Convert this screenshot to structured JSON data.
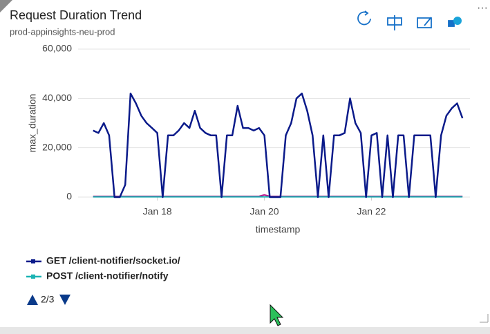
{
  "chart_data": {
    "type": "line",
    "title": "Request Duration Trend",
    "subtitle": "prod-appinsights-neu-prod",
    "x_label": "timestamp",
    "y_label": "max_duration",
    "xlim": [
      16.52,
      23.84
    ],
    "xticks": [
      {
        "value": 18,
        "label": "Jan 18"
      },
      {
        "value": 20,
        "label": "Jan 20"
      },
      {
        "value": 22,
        "label": "Jan 22"
      }
    ],
    "ylim": [
      0,
      60000
    ],
    "yticks": [
      0,
      {
        "value": 20000,
        "label": "20,000"
      },
      {
        "value": 40000,
        "label": "40,000"
      },
      {
        "value": 60000,
        "label": "60,000"
      }
    ],
    "grid": true,
    "legend_page": "2/3",
    "x": [
      16.8,
      16.9,
      17.0,
      17.1,
      17.2,
      17.3,
      17.4,
      17.5,
      17.6,
      17.7,
      17.8,
      17.9,
      18.0,
      18.1,
      18.2,
      18.3,
      18.4,
      18.5,
      18.6,
      18.7,
      18.8,
      18.9,
      19.0,
      19.1,
      19.2,
      19.3,
      19.4,
      19.5,
      19.6,
      19.7,
      19.8,
      19.9,
      20.0,
      20.1,
      20.2,
      20.3,
      20.4,
      20.5,
      20.6,
      20.7,
      20.8,
      20.9,
      21.0,
      21.1,
      21.2,
      21.3,
      21.4,
      21.5,
      21.6,
      21.7,
      21.8,
      21.9,
      22.0,
      22.1,
      22.2,
      22.3,
      22.4,
      22.5,
      22.6,
      22.7,
      22.8,
      22.9,
      23.0,
      23.1,
      23.2,
      23.3,
      23.4,
      23.5,
      23.6,
      23.7
    ],
    "series": [
      {
        "name": "GET /client-notifier/socket.io/",
        "color": "#0a1a8a",
        "values": [
          27000,
          26000,
          30000,
          25000,
          0,
          0,
          5000,
          42000,
          38000,
          33000,
          30000,
          28000,
          26000,
          0,
          25000,
          25000,
          27000,
          30000,
          28000,
          35000,
          28000,
          26000,
          25000,
          25000,
          0,
          25000,
          25000,
          37000,
          28000,
          28000,
          27000,
          28000,
          25000,
          0,
          0,
          0,
          25000,
          30000,
          40000,
          42000,
          35000,
          25000,
          0,
          25000,
          0,
          25000,
          25000,
          26000,
          40000,
          30000,
          26000,
          0,
          25000,
          26000,
          0,
          25000,
          0,
          25000,
          25000,
          0,
          25000,
          25000,
          25000,
          25000,
          0,
          25000,
          33000,
          36000,
          38000,
          32000
        ]
      },
      {
        "name": "POST /client-notifier/notify",
        "color": "#1bb3b3",
        "values": [
          100,
          100,
          100,
          100,
          100,
          100,
          100,
          100,
          100,
          100,
          100,
          100,
          100,
          100,
          100,
          100,
          100,
          100,
          100,
          100,
          100,
          100,
          100,
          100,
          100,
          100,
          100,
          100,
          100,
          100,
          100,
          100,
          100,
          100,
          100,
          100,
          100,
          100,
          100,
          100,
          100,
          100,
          100,
          100,
          100,
          100,
          100,
          100,
          100,
          100,
          100,
          100,
          100,
          100,
          100,
          100,
          100,
          100,
          100,
          100,
          100,
          100,
          100,
          100,
          100,
          100,
          100,
          100,
          100,
          100
        ]
      },
      {
        "color": "#c0168c",
        "values": [
          300,
          300,
          300,
          300,
          300,
          300,
          300,
          300,
          300,
          300,
          300,
          300,
          300,
          300,
          300,
          300,
          300,
          300,
          300,
          300,
          300,
          300,
          300,
          300,
          300,
          300,
          300,
          300,
          300,
          300,
          300,
          300,
          900,
          300,
          300,
          300,
          300,
          300,
          300,
          300,
          300,
          300,
          300,
          300,
          300,
          300,
          300,
          300,
          300,
          300,
          300,
          300,
          300,
          300,
          300,
          300,
          300,
          300,
          300,
          300,
          300,
          300,
          300,
          300,
          300,
          300,
          300,
          300,
          300,
          300
        ]
      }
    ]
  }
}
